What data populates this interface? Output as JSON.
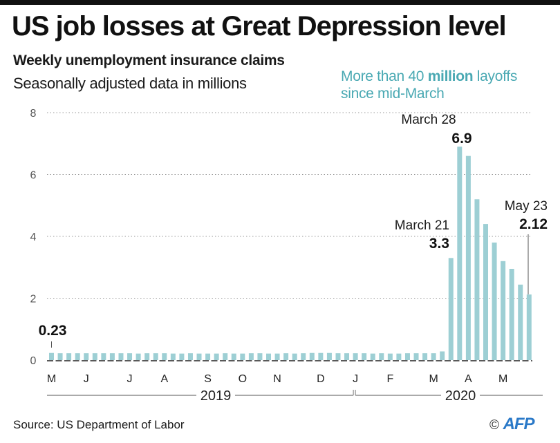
{
  "header": {
    "title": "US job losses at Great Depression level",
    "subtitle": "Weekly unemployment insurance claims",
    "subtitle2": "Seasonally adjusted data in millions",
    "callout_pre": "More than 40 ",
    "callout_bold": "million",
    "callout_post": " layoffs",
    "callout_line2": "since mid-March"
  },
  "footer": {
    "source": "Source: US Department of Labor",
    "copyright": "©",
    "agency": "AFP"
  },
  "colors": {
    "bar": "#9dcfd4",
    "accent_text": "#4aa9b3",
    "grid": "#9a9a9a",
    "axis": "#222222"
  },
  "chart_data": {
    "type": "bar",
    "title": "US job losses at Great Depression level",
    "subtitle": "Weekly unemployment insurance claims — Seasonally adjusted data in millions",
    "xlabel": "",
    "ylabel": "",
    "ylim": [
      0,
      8
    ],
    "yticks": [
      0,
      2,
      4,
      6,
      8
    ],
    "grid": true,
    "month_labels": [
      {
        "label": "M",
        "week": 0
      },
      {
        "label": "J",
        "week": 4
      },
      {
        "label": "J",
        "week": 9
      },
      {
        "label": "A",
        "week": 13
      },
      {
        "label": "S",
        "week": 18
      },
      {
        "label": "O",
        "week": 22
      },
      {
        "label": "N",
        "week": 26
      },
      {
        "label": "D",
        "week": 31
      },
      {
        "label": "J",
        "week": 35
      },
      {
        "label": "F",
        "week": 39
      },
      {
        "label": "M",
        "week": 44
      },
      {
        "label": "A",
        "week": 48
      },
      {
        "label": "M",
        "week": 52
      }
    ],
    "years": [
      {
        "label": "2019",
        "from_week": 0,
        "to_week": 35
      },
      {
        "label": "2020",
        "from_week": 35,
        "to_week": 55
      }
    ],
    "values": [
      0.23,
      0.22,
      0.22,
      0.22,
      0.22,
      0.22,
      0.22,
      0.22,
      0.22,
      0.22,
      0.21,
      0.22,
      0.22,
      0.22,
      0.21,
      0.21,
      0.22,
      0.21,
      0.21,
      0.21,
      0.22,
      0.21,
      0.21,
      0.22,
      0.22,
      0.21,
      0.21,
      0.22,
      0.21,
      0.22,
      0.23,
      0.23,
      0.23,
      0.22,
      0.22,
      0.22,
      0.22,
      0.21,
      0.22,
      0.21,
      0.21,
      0.22,
      0.22,
      0.22,
      0.22,
      0.28,
      3.3,
      6.9,
      6.6,
      5.2,
      4.4,
      3.8,
      3.2,
      2.95,
      2.44,
      2.12
    ],
    "annotations": [
      {
        "label": "",
        "value_text": "0.23",
        "week": 0
      },
      {
        "label": "March 21",
        "value_text": "3.3",
        "week": 46
      },
      {
        "label": "March 28",
        "value_text": "6.9",
        "week": 47
      },
      {
        "label": "May 23",
        "value_text": "2.12",
        "week": 55
      }
    ]
  }
}
